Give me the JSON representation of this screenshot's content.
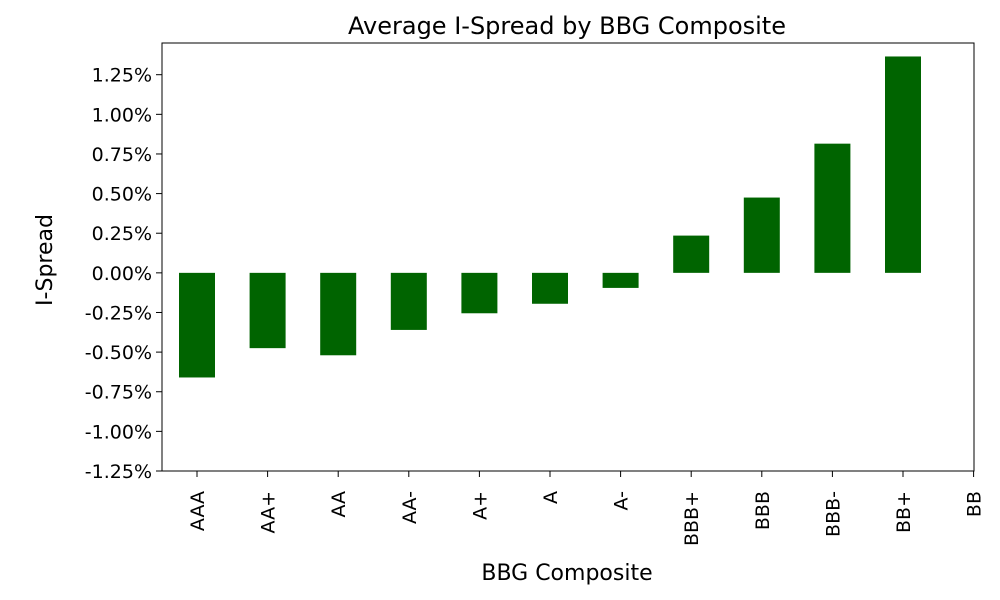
{
  "chart_data": {
    "type": "bar",
    "title": "Average I-Spread by BBG Composite",
    "xlabel": "BBG Composite",
    "ylabel": "I-Spread",
    "categories": [
      "AAA",
      "AA+",
      "AA",
      "AA-",
      "A+",
      "A",
      "A-",
      "BBB+",
      "BBB",
      "BBB-",
      "BB+",
      "BB"
    ],
    "values": [
      -0.66,
      -0.475,
      -0.52,
      -0.36,
      -0.255,
      -0.195,
      -0.095,
      0.235,
      0.475,
      0.815,
      1.365,
      null
    ],
    "ylim": [
      -1.25,
      1.45
    ],
    "yticks": [
      -1.25,
      -1.0,
      -0.75,
      -0.5,
      -0.25,
      0.0,
      0.25,
      0.5,
      0.75,
      1.0,
      1.25
    ],
    "ytick_labels": [
      "-1.25%",
      "-1.00%",
      "-0.75%",
      "-0.50%",
      "-0.25%",
      "0.00%",
      "0.25%",
      "0.50%",
      "0.75%",
      "1.00%",
      "1.25%"
    ],
    "bar_color": "#006400",
    "grid": false,
    "legend": "none"
  }
}
